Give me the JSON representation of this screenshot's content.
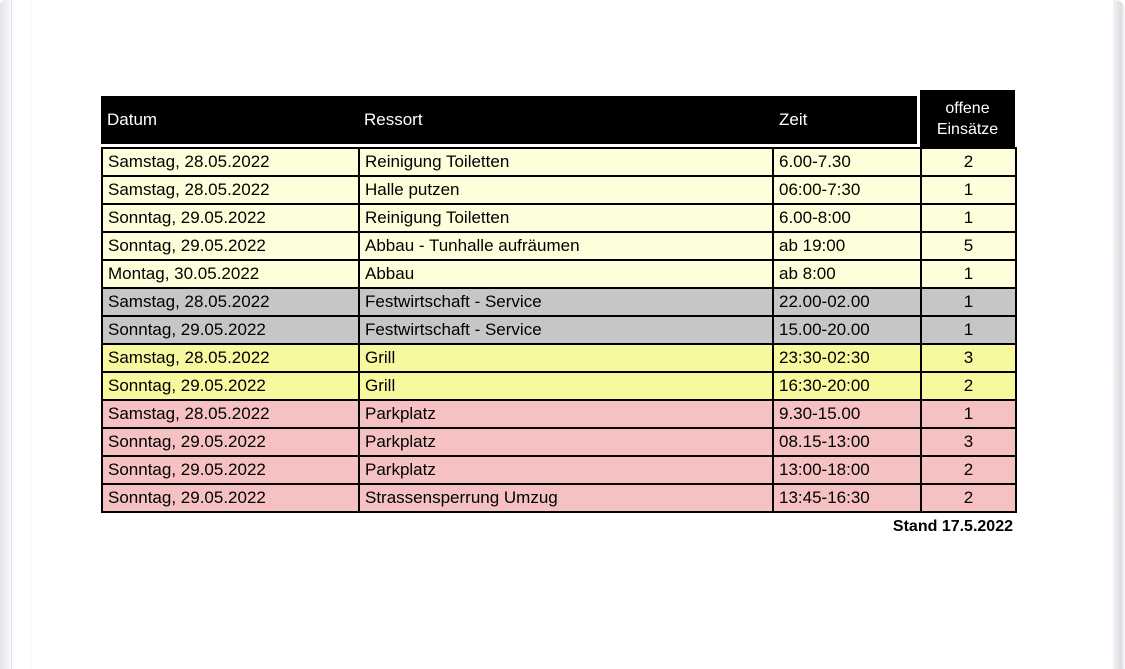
{
  "page": {
    "footer_note": "Stand 17.5.2022"
  },
  "table": {
    "columns": [
      {
        "key": "datum",
        "label": "Datum"
      },
      {
        "key": "ressort",
        "label": "Ressort"
      },
      {
        "key": "zeit",
        "label": "Zeit"
      },
      {
        "key": "offene",
        "label": "offene Einsätze",
        "label_lines": [
          "offene",
          "Einsätze"
        ]
      }
    ],
    "colors": {
      "header_bg": "#000000",
      "header_text": "#FFFFFF",
      "cream": "#FEFEDB",
      "yellow": "#F8F89E",
      "gray": "#C6C6C6",
      "pink": "#F5C1C1",
      "border": "#000000"
    },
    "rows": [
      {
        "datum": "Samstag, 28.05.2022",
        "ressort": "Reinigung Toiletten",
        "zeit": "6.00-7.30",
        "offene": "2",
        "color": "cream"
      },
      {
        "datum": "Samstag, 28.05.2022",
        "ressort": "Halle putzen",
        "zeit": "06:00-7:30",
        "offene": "1",
        "color": "cream"
      },
      {
        "datum": "Sonntag, 29.05.2022",
        "ressort": "Reinigung Toiletten",
        "zeit": "6.00-8:00",
        "offene": "1",
        "color": "cream"
      },
      {
        "datum": "Sonntag, 29.05.2022",
        "ressort": "Abbau - Tunhalle aufräumen",
        "zeit": "ab 19:00",
        "offene": "5",
        "color": "cream"
      },
      {
        "datum": "Montag, 30.05.2022",
        "ressort": "Abbau",
        "zeit": "ab 8:00",
        "offene": "1",
        "color": "cream"
      },
      {
        "datum": "Samstag, 28.05.2022",
        "ressort": "Festwirtschaft - Service",
        "zeit": "22.00-02.00",
        "offene": "1",
        "color": "gray"
      },
      {
        "datum": "Sonntag, 29.05.2022",
        "ressort": "Festwirtschaft - Service",
        "zeit": "15.00-20.00",
        "offene": "1",
        "color": "gray"
      },
      {
        "datum": "Samstag, 28.05.2022",
        "ressort": "Grill",
        "zeit": "23:30-02:30",
        "offene": "3",
        "color": "yellow"
      },
      {
        "datum": "Sonntag, 29.05.2022",
        "ressort": "Grill",
        "zeit": "16:30-20:00",
        "offene": "2",
        "color": "yellow"
      },
      {
        "datum": "Samstag, 28.05.2022",
        "ressort": "Parkplatz",
        "zeit": "9.30-15.00",
        "offene": "1",
        "color": "pink"
      },
      {
        "datum": "Sonntag, 29.05.2022",
        "ressort": "Parkplatz",
        "zeit": "08.15-13:00",
        "offene": "3",
        "color": "pink"
      },
      {
        "datum": "Sonntag, 29.05.2022",
        "ressort": "Parkplatz",
        "zeit": "13:00-18:00",
        "offene": "2",
        "color": "pink"
      },
      {
        "datum": "Sonntag, 29.05.2022",
        "ressort": "Strassensperrung Umzug",
        "zeit": "13:45-16:30",
        "offene": "2",
        "color": "pink"
      }
    ]
  }
}
